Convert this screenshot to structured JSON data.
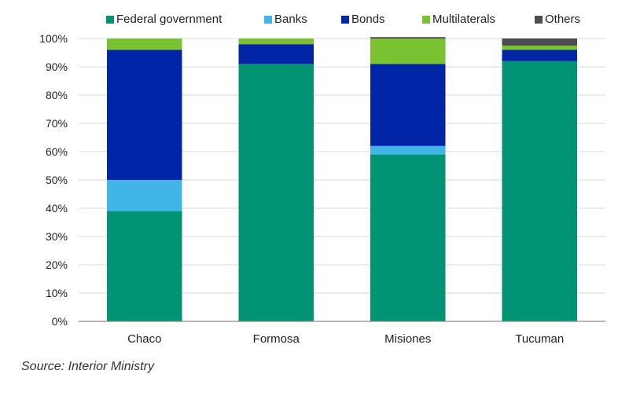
{
  "chart_data": {
    "type": "bar",
    "stacked": true,
    "categories": [
      "Chaco",
      "Formosa",
      "Misiones",
      "Tucuman"
    ],
    "series": [
      {
        "name": "Federal government",
        "color": "#009474",
        "values": [
          39,
          91,
          59,
          92
        ]
      },
      {
        "name": "Banks",
        "color": "#41B6E6",
        "values": [
          11,
          0,
          3,
          0
        ]
      },
      {
        "name": "Bonds",
        "color": "#0024A6",
        "values": [
          46,
          7,
          29,
          4
        ]
      },
      {
        "name": "Multilaterals",
        "color": "#7AC231",
        "values": [
          4,
          2,
          9,
          1.5
        ]
      },
      {
        "name": "Others",
        "color": "#4D4D4F",
        "values": [
          0,
          0,
          0.5,
          2.5
        ]
      }
    ],
    "ylim": [
      0,
      100
    ],
    "yticks": [
      "0%",
      "10%",
      "20%",
      "30%",
      "40%",
      "50%",
      "60%",
      "70%",
      "80%",
      "90%",
      "100%"
    ],
    "grid": true,
    "legend_position": "top"
  },
  "source": "Source: Interior Ministry"
}
